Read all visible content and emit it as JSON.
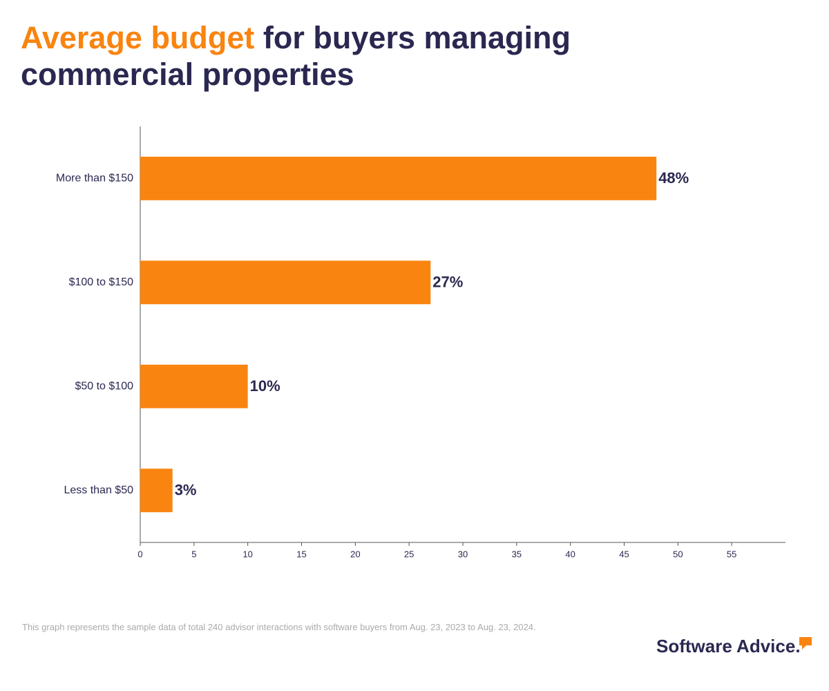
{
  "chart_data": {
    "type": "hbar",
    "title_highlight": "Average budget",
    "title_rest": "for buyers managing commercial properties",
    "categories": [
      "More than $150",
      "$100 to $150",
      "$50 to $100",
      "Less than $50"
    ],
    "values": [
      48,
      27,
      10,
      3
    ],
    "value_labels": [
      "48%",
      "27%",
      "10%",
      "3%"
    ],
    "color": "#f98410",
    "xlim": [
      0,
      60
    ],
    "xticks": [
      0,
      5,
      10,
      15,
      20,
      25,
      30,
      35,
      40,
      45,
      50,
      55
    ],
    "footnote": "This graph represents the sample data of total 240 advisor interactions with software buyers from Aug. 23, 2023 to Aug. 23, 2024.",
    "brand": "Software Advice."
  }
}
